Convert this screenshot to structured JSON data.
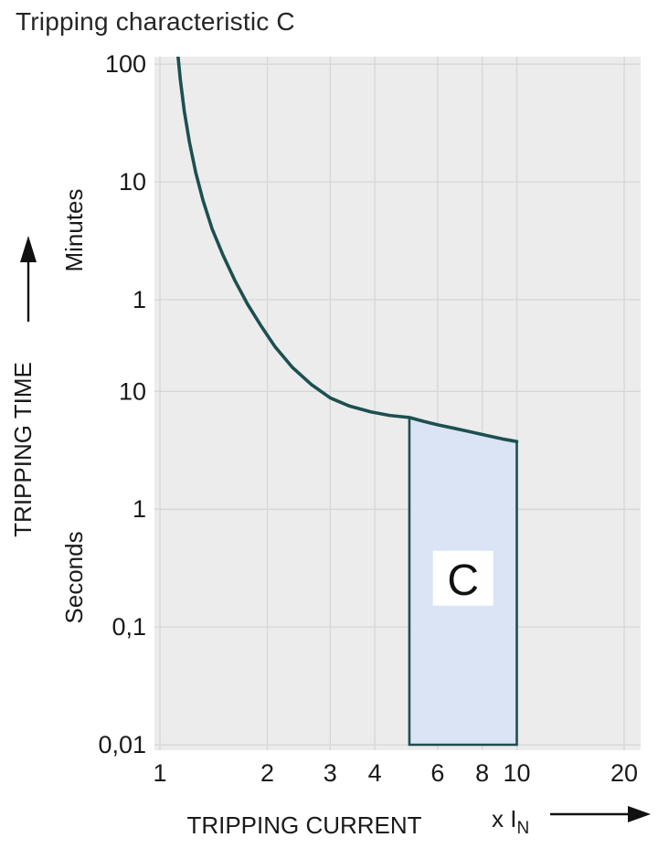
{
  "chart_data": {
    "type": "line",
    "title": "Tripping characteristic C",
    "xlabel": "TRIPPING CURRENT",
    "x_unit_label": "x I",
    "x_unit_subscript": "N",
    "ylabel": "TRIPPING TIME",
    "y_upper_unit": "Minutes",
    "y_lower_unit": "Seconds",
    "x_scale": "log",
    "y_scale": "log",
    "grid": true,
    "xlim": [
      1,
      20
    ],
    "ylim_seconds": [
      0.01,
      6000
    ],
    "x_ticks": [
      1,
      2,
      3,
      4,
      6,
      8,
      10,
      20
    ],
    "x_tick_labels": [
      "1",
      "2",
      "3",
      "4",
      "6",
      "8",
      "10",
      "20"
    ],
    "y_ticks_seconds": [
      6000,
      600,
      60,
      10,
      1,
      0.1,
      0.01
    ],
    "y_tick_labels": [
      "100",
      "10",
      "1",
      "10",
      "1",
      "0,1",
      "0,01"
    ],
    "curve_series": {
      "name": "C-characteristic tripping curve",
      "x_multiple_of_In": [
        1.115,
        1.14,
        1.17,
        1.21,
        1.26,
        1.32,
        1.4,
        1.5,
        1.62,
        1.76,
        1.92,
        2.1,
        2.35,
        2.65,
        3.0,
        3.4,
        3.9,
        4.4,
        5.0,
        5.5,
        6.0,
        6.7,
        7.5,
        8.3,
        9.1,
        10.0
      ],
      "t_seconds": [
        9000,
        4500,
        2400,
        1300,
        720,
        420,
        240,
        145,
        88,
        55,
        36,
        24,
        16,
        11.5,
        8.8,
        7.5,
        6.7,
        6.25,
        6.0,
        5.55,
        5.2,
        4.85,
        4.5,
        4.2,
        3.95,
        3.75
      ]
    },
    "region": {
      "label": "C",
      "x_range_multiple_of_In": [
        5,
        10
      ],
      "top_t_seconds_at_range": [
        6.0,
        3.75
      ],
      "bottom_t_seconds": 0.01
    },
    "colors": {
      "curve": "#1d4f50",
      "plot_bg": "#ececec",
      "grid": "#d6d6d6",
      "region_fill": "#dbe4f4",
      "region_label_bg": "#ffffff",
      "text": "#1a1a1a"
    }
  }
}
